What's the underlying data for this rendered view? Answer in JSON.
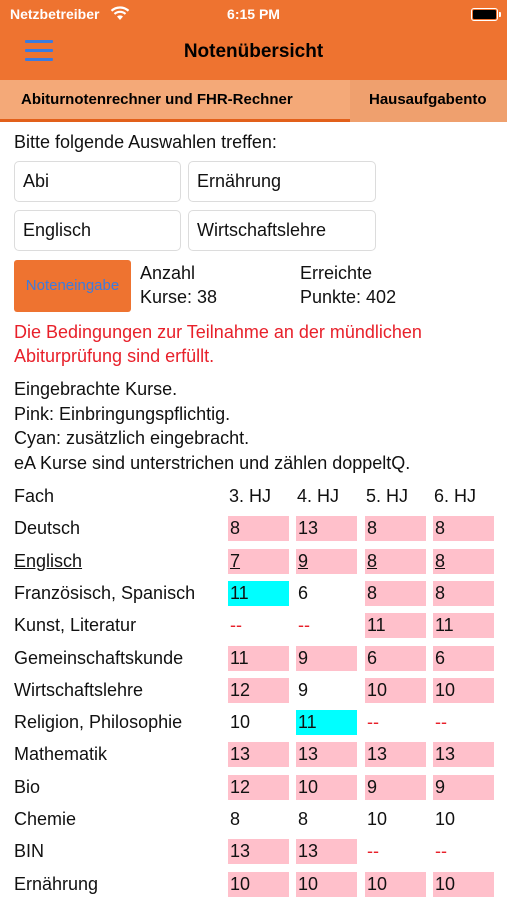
{
  "status": {
    "carrier": "Netzbetreiber",
    "time": "6:15 PM"
  },
  "nav": {
    "title": "Notenübersicht",
    "menu_icon": "hamburger-icon"
  },
  "tabs": [
    {
      "label": "Abiturnotenrechner und FHR-Rechner",
      "active": true
    },
    {
      "label": "Hausaufgabento",
      "active": false
    }
  ],
  "selection": {
    "prompt": "Bitte folgende Auswahlen treffen:",
    "fields": [
      "Abi",
      "Ernährung",
      "Englisch",
      "Wirtschaftslehre"
    ]
  },
  "summary": {
    "button_label": "Noteneingabe",
    "count_label": "Anzahl",
    "count_value": "Kurse: 38",
    "points_label": "Erreichte",
    "points_value": "Punkte: 402"
  },
  "warning": "Die Bedingungen zur Teilnahme an der mündlichen Abiturprüfung sind erfüllt.",
  "legend": [
    "Eingebrachte Kurse.",
    "Pink: Einbringungspflichtig.",
    "Cyan: zusätzlich eingebracht.",
    "eA Kurse sind unterstrichen und zählen doppeltQ."
  ],
  "colors": {
    "accent": "#EE7330",
    "tab_bar": "#F4A978",
    "pink": "#FFC0CB",
    "cyan": "#00FFFF",
    "warning": "#E8202A",
    "link": "#3B7BE0"
  },
  "table": {
    "headers": [
      "Fach",
      "3. HJ",
      "4. HJ",
      "5. HJ",
      "6. HJ"
    ],
    "rows": [
      {
        "fach": "Deutsch",
        "ea": false,
        "cells": [
          {
            "v": "8",
            "c": "pink"
          },
          {
            "v": "13",
            "c": "pink"
          },
          {
            "v": "8",
            "c": "pink"
          },
          {
            "v": "8",
            "c": "pink"
          }
        ]
      },
      {
        "fach": "Englisch",
        "ea": true,
        "cells": [
          {
            "v": "7",
            "c": "pink"
          },
          {
            "v": "9",
            "c": "pink"
          },
          {
            "v": "8",
            "c": "pink"
          },
          {
            "v": "8",
            "c": "pink"
          }
        ]
      },
      {
        "fach": "Französisch, Spanisch",
        "ea": false,
        "cells": [
          {
            "v": "11",
            "c": "cyan"
          },
          {
            "v": "6",
            "c": ""
          },
          {
            "v": "8",
            "c": "pink"
          },
          {
            "v": "8",
            "c": "pink"
          }
        ]
      },
      {
        "fach": "Kunst, Literatur",
        "ea": false,
        "cells": [
          {
            "v": "--",
            "c": ""
          },
          {
            "v": "--",
            "c": ""
          },
          {
            "v": "11",
            "c": "pink"
          },
          {
            "v": "11",
            "c": "pink"
          }
        ]
      },
      {
        "fach": "Gemeinschaftskunde",
        "ea": false,
        "cells": [
          {
            "v": "11",
            "c": "pink"
          },
          {
            "v": "9",
            "c": "pink"
          },
          {
            "v": "6",
            "c": "pink"
          },
          {
            "v": "6",
            "c": "pink"
          }
        ]
      },
      {
        "fach": "Wirtschaftslehre",
        "ea": false,
        "cells": [
          {
            "v": "12",
            "c": "pink"
          },
          {
            "v": "9",
            "c": ""
          },
          {
            "v": "10",
            "c": "pink"
          },
          {
            "v": "10",
            "c": "pink"
          }
        ]
      },
      {
        "fach": "Religion, Philosophie",
        "ea": false,
        "cells": [
          {
            "v": "10",
            "c": ""
          },
          {
            "v": "11",
            "c": "cyan"
          },
          {
            "v": "--",
            "c": ""
          },
          {
            "v": "--",
            "c": ""
          }
        ]
      },
      {
        "fach": "Mathematik",
        "ea": false,
        "cells": [
          {
            "v": "13",
            "c": "pink"
          },
          {
            "v": "13",
            "c": "pink"
          },
          {
            "v": "13",
            "c": "pink"
          },
          {
            "v": "13",
            "c": "pink"
          }
        ]
      },
      {
        "fach": "Bio",
        "ea": false,
        "cells": [
          {
            "v": "12",
            "c": "pink"
          },
          {
            "v": "10",
            "c": "pink"
          },
          {
            "v": "9",
            "c": "pink"
          },
          {
            "v": "9",
            "c": "pink"
          }
        ]
      },
      {
        "fach": "Chemie",
        "ea": false,
        "cells": [
          {
            "v": "8",
            "c": ""
          },
          {
            "v": "8",
            "c": ""
          },
          {
            "v": "10",
            "c": ""
          },
          {
            "v": "10",
            "c": ""
          }
        ]
      },
      {
        "fach": "BIN",
        "ea": false,
        "cells": [
          {
            "v": "13",
            "c": "pink"
          },
          {
            "v": "13",
            "c": "pink"
          },
          {
            "v": "--",
            "c": ""
          },
          {
            "v": "--",
            "c": ""
          }
        ]
      },
      {
        "fach": "Ernährung",
        "ea": false,
        "cells": [
          {
            "v": "10",
            "c": "pink"
          },
          {
            "v": "10",
            "c": "pink"
          },
          {
            "v": "10",
            "c": "pink"
          },
          {
            "v": "10",
            "c": "pink"
          }
        ]
      }
    ]
  }
}
